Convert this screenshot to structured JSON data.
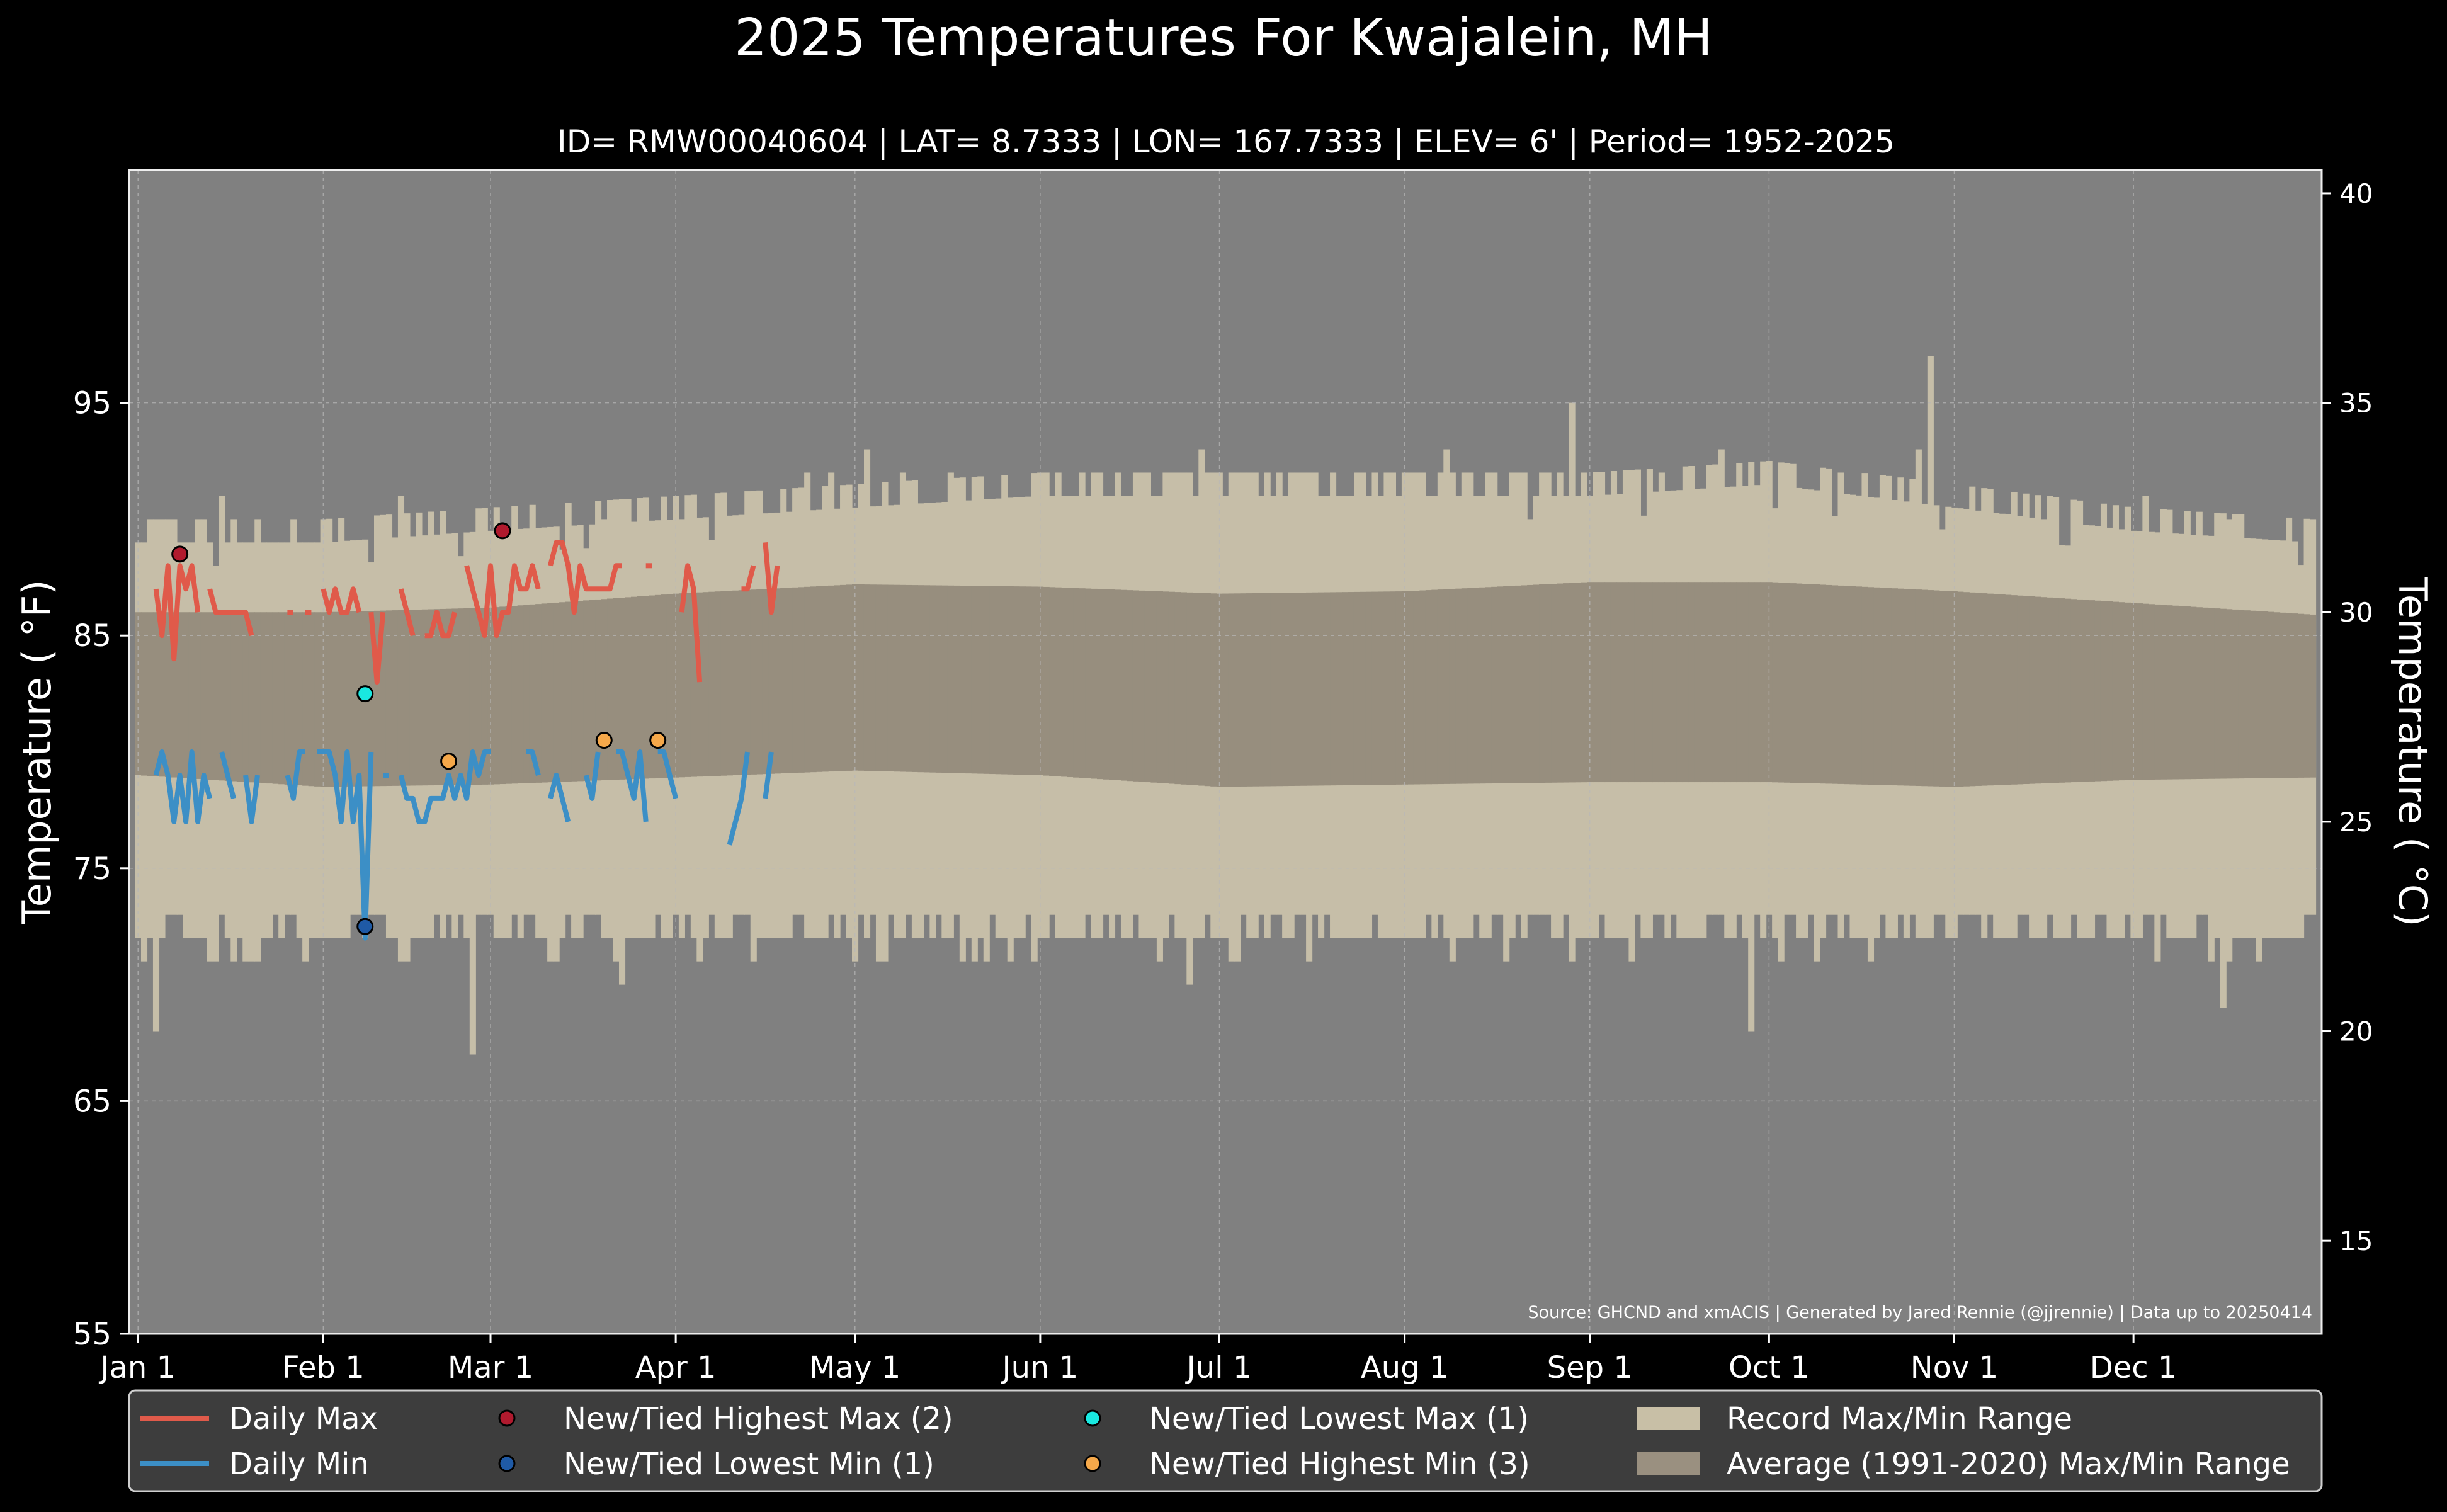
{
  "chart_data": {
    "type": "line",
    "title": "2025 Temperatures For Kwajalein, MH",
    "subtitle": "ID= RMW00040604 | LAT= 8.7333 | LON= 167.7333 | ELEV= 6' | Period= 1952-2025",
    "ylabel_left": "Temperature ( $^∘$F)",
    "ylabel_left_display": "Temperature ( °F)",
    "ylabel_right_display": "Temperature ( °C)",
    "source": "Source: GHCND and xmACIS | Generated by Jared Rennie (@jjrennie) | Data up to 20250414",
    "ylim_f": [
      55,
      105
    ],
    "xlim_day": [
      -1.5,
      365.5
    ],
    "grid": true,
    "legend_position": "bottom",
    "yticks_f": [
      55,
      65,
      75,
      85,
      95
    ],
    "yticks_c": [
      15,
      20,
      25,
      30,
      35,
      40
    ],
    "x_ticks": [
      {
        "label": "Jan 1",
        "day": 0
      },
      {
        "label": "Feb 1",
        "day": 31
      },
      {
        "label": "Mar 1",
        "day": 59
      },
      {
        "label": "Apr 1",
        "day": 90
      },
      {
        "label": "May 1",
        "day": 120
      },
      {
        "label": "Jun 1",
        "day": 151
      },
      {
        "label": "Jul 1",
        "day": 181
      },
      {
        "label": "Aug 1",
        "day": 212
      },
      {
        "label": "Sep 1",
        "day": 243
      },
      {
        "label": "Oct 1",
        "day": 273
      },
      {
        "label": "Nov 1",
        "day": 304
      },
      {
        "label": "Dec 1",
        "day": 334
      }
    ],
    "normals": {
      "max_day": [
        0,
        31,
        59,
        90,
        120,
        151,
        181,
        212,
        243,
        273,
        304,
        334,
        364
      ],
      "avg_max": [
        86,
        86,
        86.2,
        86.8,
        87.2,
        87.1,
        86.8,
        86.9,
        87.3,
        87.3,
        86.9,
        86.4,
        85.9
      ],
      "avg_min": [
        79,
        78.5,
        78.6,
        78.9,
        79.2,
        79.0,
        78.5,
        78.6,
        78.7,
        78.7,
        78.5,
        78.8,
        78.9
      ],
      "record_max_base": [
        89,
        89,
        89.5,
        90,
        90.5,
        91,
        91,
        91,
        91,
        91.5,
        90.5,
        89.5,
        89
      ],
      "record_min_base": [
        73,
        73,
        73,
        73,
        73,
        73,
        73,
        73,
        73,
        73,
        73,
        73,
        73
      ]
    },
    "record_spikes_max": [
      {
        "day": 14,
        "v": 91
      },
      {
        "day": 44,
        "v": 91
      },
      {
        "day": 78,
        "v": 90
      },
      {
        "day": 91,
        "v": 90
      },
      {
        "day": 112,
        "v": 92
      },
      {
        "day": 116,
        "v": 92
      },
      {
        "day": 122,
        "v": 93
      },
      {
        "day": 128,
        "v": 92
      },
      {
        "day": 136,
        "v": 92
      },
      {
        "day": 152,
        "v": 92
      },
      {
        "day": 162,
        "v": 91
      },
      {
        "day": 178,
        "v": 93
      },
      {
        "day": 185,
        "v": 92
      },
      {
        "day": 200,
        "v": 92
      },
      {
        "day": 212,
        "v": 92
      },
      {
        "day": 219,
        "v": 93
      },
      {
        "day": 232,
        "v": 92
      },
      {
        "day": 240,
        "v": 95
      },
      {
        "day": 255,
        "v": 92
      },
      {
        "day": 265,
        "v": 93
      },
      {
        "day": 285,
        "v": 92
      },
      {
        "day": 300,
        "v": 97
      },
      {
        "day": 298,
        "v": 93
      },
      {
        "day": 320,
        "v": 91
      },
      {
        "day": 336,
        "v": 91
      },
      {
        "day": 350,
        "v": 90
      }
    ],
    "record_spikes_min": [
      {
        "day": 3,
        "v": 68
      },
      {
        "day": 9,
        "v": 72
      },
      {
        "day": 18,
        "v": 71
      },
      {
        "day": 31,
        "v": 72
      },
      {
        "day": 45,
        "v": 71
      },
      {
        "day": 56,
        "v": 67
      },
      {
        "day": 70,
        "v": 71
      },
      {
        "day": 81,
        "v": 70
      },
      {
        "day": 94,
        "v": 71
      },
      {
        "day": 120,
        "v": 71
      },
      {
        "day": 150,
        "v": 71
      },
      {
        "day": 176,
        "v": 70
      },
      {
        "day": 196,
        "v": 71
      },
      {
        "day": 220,
        "v": 71
      },
      {
        "day": 250,
        "v": 71
      },
      {
        "day": 270,
        "v": 68
      },
      {
        "day": 290,
        "v": 71
      },
      {
        "day": 318,
        "v": 72
      },
      {
        "day": 338,
        "v": 71
      },
      {
        "day": 349,
        "v": 69
      }
    ],
    "series": [
      {
        "name": "Daily Max",
        "color": "#e05a4a",
        "values": [
          87,
          85,
          88,
          84,
          88,
          87,
          88,
          86,
          null,
          87,
          86,
          86,
          86,
          86,
          86,
          86,
          85,
          null,
          null,
          null,
          null,
          null,
          86,
          86,
          null,
          86,
          86,
          null,
          87,
          86,
          87,
          86,
          86,
          87,
          86,
          null,
          86,
          83,
          86,
          null,
          null,
          87,
          86,
          85,
          null,
          85,
          85,
          86,
          85,
          85,
          86,
          null,
          88,
          87,
          86,
          85,
          88,
          85,
          86,
          86,
          88,
          87,
          87,
          88,
          87,
          null,
          88,
          89,
          89,
          88,
          86,
          88,
          87,
          87,
          87,
          87,
          87,
          88,
          88,
          null,
          88,
          null,
          88,
          88,
          null,
          88,
          null,
          null,
          86,
          88,
          87,
          83,
          null,
          null,
          null,
          null,
          null,
          null,
          87,
          87,
          88,
          null,
          89,
          86,
          88
        ],
        "start_day": 3
      },
      {
        "name": "Daily Min",
        "color": "#3c8fc6",
        "values": [
          79,
          80,
          79,
          77,
          79,
          77,
          80,
          77,
          79,
          78,
          null,
          80,
          79,
          78,
          null,
          79,
          77,
          79,
          null,
          null,
          null,
          null,
          79,
          78,
          80,
          80,
          null,
          80,
          80,
          80,
          79,
          77,
          80,
          77,
          79,
          72,
          80,
          null,
          79,
          79,
          null,
          79,
          78,
          78,
          77,
          77,
          78,
          78,
          78,
          79,
          78,
          79,
          78,
          80,
          79,
          80,
          80,
          null,
          null,
          null,
          80,
          null,
          80,
          80,
          79,
          null,
          78,
          79,
          78,
          77,
          null,
          null,
          79,
          78,
          80,
          null,
          null,
          80,
          80,
          79,
          78,
          80,
          77,
          null,
          80,
          80,
          79,
          78,
          null,
          77,
          null,
          null,
          null,
          null,
          null,
          null,
          76,
          77,
          78,
          80,
          null,
          null,
          78,
          80
        ],
        "start_day": 3
      }
    ],
    "records": {
      "highest_max": [
        {
          "day": 7,
          "v": 88.5
        },
        {
          "day": 61,
          "v": 89.5
        }
      ],
      "lowest_min": [
        {
          "day": 38,
          "v": 72.5
        }
      ],
      "lowest_max": [
        {
          "day": 38,
          "v": 82.5
        }
      ],
      "highest_min": [
        {
          "day": 52,
          "v": 79.6
        },
        {
          "day": 78,
          "v": 80.5
        },
        {
          "day": 87,
          "v": 80.5
        }
      ]
    },
    "legend": [
      {
        "label": "Daily Max",
        "kind": "line",
        "color": "#e05a4a"
      },
      {
        "label": "Daily Min",
        "kind": "line",
        "color": "#3c8fc6"
      },
      {
        "label": "New/Tied Highest Max (2)",
        "kind": "dot",
        "color": "#b01a2e"
      },
      {
        "label": "New/Tied Lowest Min (1)",
        "kind": "dot",
        "color": "#1f5aa6"
      },
      {
        "label": "New/Tied Lowest Max (1)",
        "kind": "dot",
        "color": "#19e8e0"
      },
      {
        "label": "New/Tied Highest Min (3)",
        "kind": "dot",
        "color": "#f5a84a"
      },
      {
        "label": "Record Max/Min Range",
        "kind": "patch",
        "color": "#c8bfa6"
      },
      {
        "label": "Average (1991-2020) Max/Min Range",
        "kind": "patch",
        "color": "#9a9080"
      }
    ],
    "colors": {
      "background": "#000000",
      "plot_bg": "#808080",
      "record_band": "#c6bea8",
      "avg_band": "#978e7e",
      "grid": "#b8b8b8"
    }
  }
}
